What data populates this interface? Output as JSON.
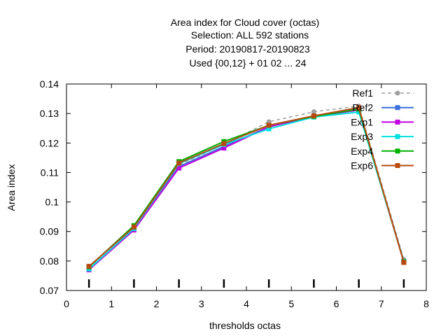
{
  "chart_data": {
    "type": "line",
    "title": [
      "Area index  for Cloud cover (octas)",
      "Selection: ALL    592 stations",
      "Period: 20190817-20190823",
      "Used {00,12} + 01 02 ... 24"
    ],
    "xlabel": "thresholds octas",
    "ylabel": "Area index",
    "xlim": [
      0,
      8
    ],
    "ylim": [
      0.07,
      0.14
    ],
    "xticks": [
      0,
      1,
      2,
      3,
      4,
      5,
      6,
      7,
      8
    ],
    "yticks": [
      0.07,
      0.08,
      0.09,
      0.1,
      0.11,
      0.12,
      0.13,
      0.14
    ],
    "xtick_labels": [
      "0",
      "1",
      "2",
      "3",
      "4",
      "5",
      "6",
      "7",
      "8"
    ],
    "ytick_labels": [
      "0.07",
      "0.08",
      "0.09",
      "0.1",
      "0.11",
      "0.12",
      "0.13",
      "0.14"
    ],
    "threshold_marks": [
      0.5,
      1.5,
      2.5,
      3.5,
      4.5,
      5.5,
      6.5,
      7.5
    ],
    "x": [
      0.5,
      1.5,
      2.5,
      3.5,
      4.5,
      5.5,
      6.5,
      7.5
    ],
    "legend_position": "top-right",
    "grid": false,
    "series": [
      {
        "name": "Ref1",
        "color": "#a0a0a0",
        "dashed": true,
        "marker": "circle",
        "values": [
          0.0775,
          0.091,
          0.1125,
          0.1195,
          0.1272,
          0.1306,
          0.1325,
          0.0805
        ]
      },
      {
        "name": "Ref2",
        "color": "#3a6fdc",
        "dashed": false,
        "marker": "square",
        "values": [
          0.0772,
          0.0908,
          0.112,
          0.1188,
          0.1255,
          0.1292,
          0.1312,
          0.0798
        ]
      },
      {
        "name": "Exp1",
        "color": "#c000e0",
        "dashed": false,
        "marker": "square",
        "values": [
          0.077,
          0.0905,
          0.1115,
          0.1183,
          0.1255,
          0.129,
          0.1312,
          0.0798
        ]
      },
      {
        "name": "Exp3",
        "color": "#00e0e0",
        "dashed": false,
        "marker": "square",
        "values": [
          0.0773,
          0.091,
          0.113,
          0.1195,
          0.1248,
          0.1288,
          0.1305,
          0.0798
        ]
      },
      {
        "name": "Exp4",
        "color": "#00b000",
        "dashed": false,
        "marker": "square",
        "values": [
          0.078,
          0.092,
          0.1137,
          0.1205,
          0.126,
          0.129,
          0.1315,
          0.0797
        ]
      },
      {
        "name": "Exp6",
        "color": "#b84a10",
        "dashed": false,
        "marker": "square",
        "values": [
          0.0782,
          0.0915,
          0.1132,
          0.1198,
          0.126,
          0.1292,
          0.132,
          0.0795
        ]
      }
    ]
  }
}
